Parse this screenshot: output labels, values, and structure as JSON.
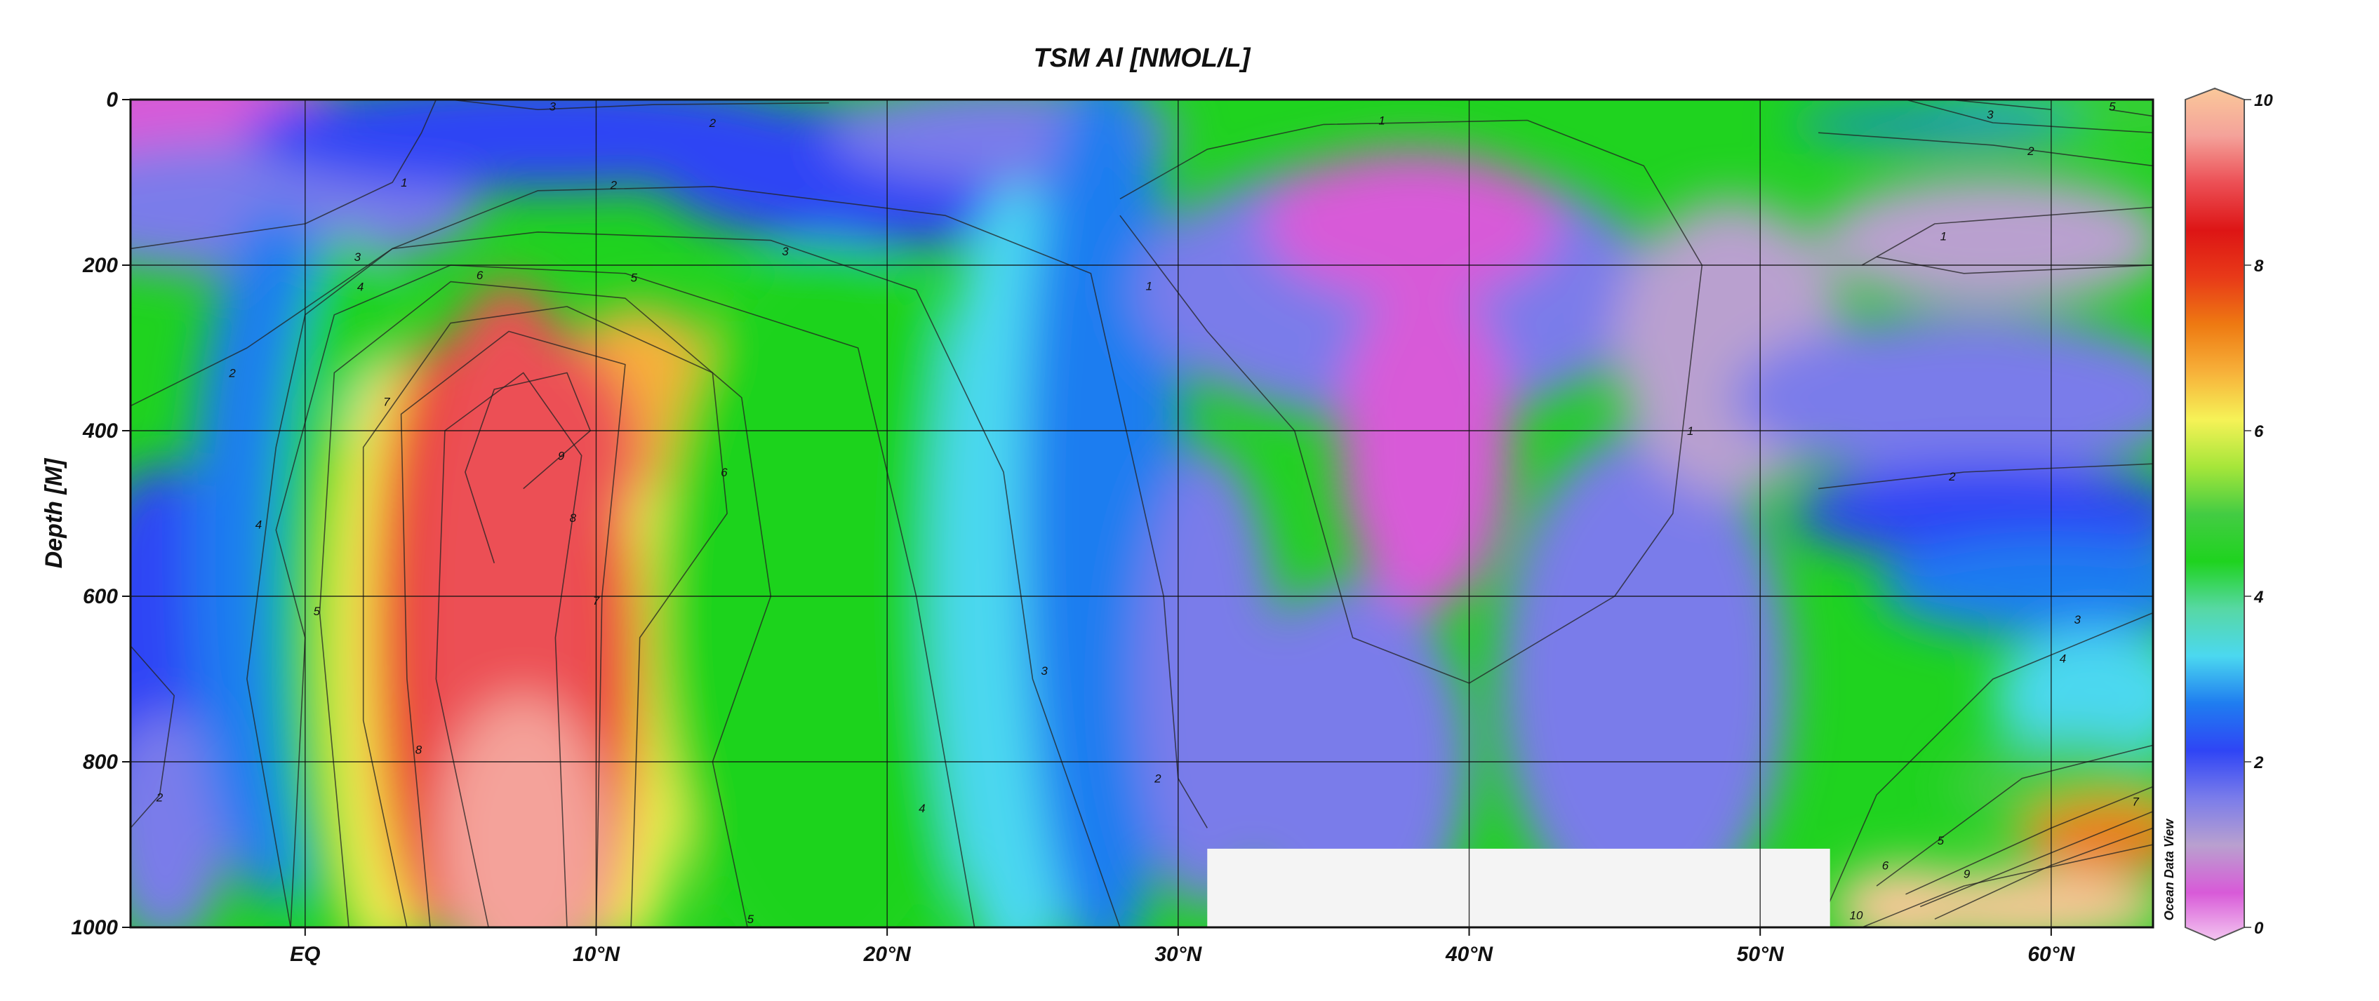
{
  "chart_data": {
    "type": "heatmap",
    "title": "TSM Al [NMOL/L]",
    "ylabel": "Depth [M]",
    "xlabel": "",
    "credit": "Ocean Data View",
    "x_unit": "latitude (degrees, negative = south)",
    "xlim": [
      -6,
      63.5
    ],
    "ylim": [
      0,
      1000
    ],
    "y_inverted": true,
    "grid": true,
    "x_ticks": [
      {
        "value": 0,
        "label": "EQ"
      },
      {
        "value": 10,
        "label": "10°N"
      },
      {
        "value": 20,
        "label": "20°N"
      },
      {
        "value": 30,
        "label": "30°N"
      },
      {
        "value": 40,
        "label": "40°N"
      },
      {
        "value": 50,
        "label": "50°N"
      },
      {
        "value": 60,
        "label": "60°N"
      }
    ],
    "y_ticks": [
      {
        "value": 0,
        "label": "0"
      },
      {
        "value": 200,
        "label": "200"
      },
      {
        "value": 400,
        "label": "400"
      },
      {
        "value": 600,
        "label": "600"
      },
      {
        "value": 800,
        "label": "800"
      },
      {
        "value": 1000,
        "label": "1000"
      }
    ],
    "colorbar": {
      "min": 0,
      "max": 10,
      "ticks": [
        "0",
        "2",
        "4",
        "6",
        "8",
        "10"
      ],
      "colors": [
        "#f3c5f0",
        "#d85ad8",
        "#b9a0cf",
        "#7a7cea",
        "#2f45f5",
        "#1f7df0",
        "#4bd8f0",
        "#57d8a4",
        "#1fd31f",
        "#43cc43",
        "#a6e63a",
        "#f6f257",
        "#f7b13a",
        "#ee7a12",
        "#e83a18",
        "#dd1515",
        "#ec4f55",
        "#f4a29a",
        "#fac89a"
      ]
    },
    "z_ref": [
      1,
      2,
      3,
      4,
      5,
      6,
      7,
      8,
      9,
      10
    ],
    "contour_labels": [
      {
        "lat": 3.4,
        "depth": 100,
        "text": "1"
      },
      {
        "lat": 37,
        "depth": 25,
        "text": "1"
      },
      {
        "lat": 29,
        "depth": 225,
        "text": "1"
      },
      {
        "lat": 56.3,
        "depth": 165,
        "text": "1"
      },
      {
        "lat": 47.6,
        "depth": 400,
        "text": "1"
      },
      {
        "lat": 14,
        "depth": 28,
        "text": "2"
      },
      {
        "lat": 10.6,
        "depth": 103,
        "text": "2"
      },
      {
        "lat": -2.5,
        "depth": 330,
        "text": "2"
      },
      {
        "lat": -5,
        "depth": 843,
        "text": "2"
      },
      {
        "lat": 29.3,
        "depth": 820,
        "text": "2"
      },
      {
        "lat": 59.3,
        "depth": 62,
        "text": "2"
      },
      {
        "lat": 56.6,
        "depth": 455,
        "text": "2"
      },
      {
        "lat": 8.5,
        "depth": 8,
        "text": "3"
      },
      {
        "lat": 1.8,
        "depth": 190,
        "text": "3"
      },
      {
        "lat": 16.5,
        "depth": 183,
        "text": "3"
      },
      {
        "lat": 25.4,
        "depth": 690,
        "text": "3"
      },
      {
        "lat": 57.9,
        "depth": 18,
        "text": "3"
      },
      {
        "lat": 60.9,
        "depth": 628,
        "text": "3"
      },
      {
        "lat": 1.9,
        "depth": 226,
        "text": "4"
      },
      {
        "lat": -1.6,
        "depth": 513,
        "text": "4"
      },
      {
        "lat": 21.2,
        "depth": 856,
        "text": "4"
      },
      {
        "lat": 60.4,
        "depth": 675,
        "text": "4"
      },
      {
        "lat": 11.3,
        "depth": 215,
        "text": "5"
      },
      {
        "lat": 0.4,
        "depth": 618,
        "text": "5"
      },
      {
        "lat": 15.3,
        "depth": 990,
        "text": "5"
      },
      {
        "lat": 56.2,
        "depth": 895,
        "text": "5"
      },
      {
        "lat": 62.1,
        "depth": 8,
        "text": "5"
      },
      {
        "lat": 6.0,
        "depth": 212,
        "text": "6"
      },
      {
        "lat": 14.4,
        "depth": 450,
        "text": "6"
      },
      {
        "lat": 54.3,
        "depth": 925,
        "text": "6"
      },
      {
        "lat": 2.8,
        "depth": 365,
        "text": "7"
      },
      {
        "lat": 10,
        "depth": 605,
        "text": "7"
      },
      {
        "lat": 62.9,
        "depth": 848,
        "text": "7"
      },
      {
        "lat": 3.9,
        "depth": 785,
        "text": "8"
      },
      {
        "lat": 9.2,
        "depth": 505,
        "text": "8"
      },
      {
        "lat": 8.8,
        "depth": 430,
        "text": "9"
      },
      {
        "lat": 57.1,
        "depth": 935,
        "text": "9"
      },
      {
        "lat": 53.3,
        "depth": 985,
        "text": "10"
      }
    ],
    "no_data_region": {
      "lat_from": 31,
      "lat_to": 52.4,
      "depth_from": 905,
      "depth_to": 1000
    }
  }
}
